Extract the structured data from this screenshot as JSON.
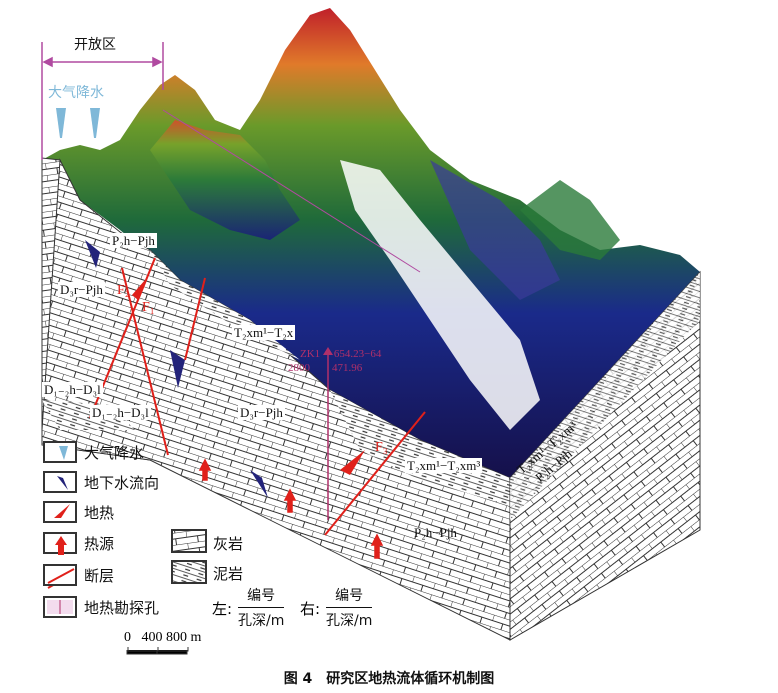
{
  "top": {
    "open_zone_label": "开放区",
    "precipitation_label": "大气降水"
  },
  "strata_labels": {
    "upper_left": "P₂h−Pjh",
    "left_mid": "D₃r−Pjh",
    "left_low_1": "D₁₋₂h−D₃l",
    "left_low_2": "D₁₋₂h−D₃l",
    "center_upper": "T₂xm¹−T₂x",
    "center_mid": "D₃r−Pjh",
    "front_right_upper": "T₂xm¹−T₂xm³",
    "front_right_lower": "P₂h−Pjh",
    "right_face_upper": "T₂xm¹−T₂xm³",
    "right_face_lower": "P₂h−Pjh"
  },
  "faults": [
    "F₁",
    "F₂",
    "F₃"
  ],
  "borehole": {
    "id": "ZK1",
    "left_depth": "2800",
    "right_number": "654.23−64",
    "right_depth": "471.96"
  },
  "legend": {
    "items": [
      {
        "label": "大气降水",
        "icon": "rain-drop-icon",
        "color": "#7fb8d8"
      },
      {
        "label": "地下水流向",
        "icon": "groundwater-arrow-icon",
        "color": "#23237a"
      },
      {
        "label": "地热",
        "icon": "geothermal-arrow-icon",
        "color": "#e0201a"
      },
      {
        "label": "热源",
        "icon": "heat-source-arrow-icon",
        "color": "#e0201a"
      },
      {
        "label": "断层",
        "icon": "fault-line-icon",
        "color": "#e0201a"
      },
      {
        "label": "地热勘探孔",
        "icon": "borehole-icon",
        "color": "#b0306a"
      }
    ],
    "lithology": [
      {
        "label": "灰岩",
        "icon": "limestone-pattern-icon"
      },
      {
        "label": "泥岩",
        "icon": "mudstone-pattern-icon"
      }
    ],
    "left_key": {
      "side": "左:",
      "numerator": "编号",
      "denominator": "孔深/m"
    },
    "right_key": {
      "side": "右:",
      "numerator": "编号",
      "denominator": "孔深/m"
    },
    "scale": {
      "ticks": [
        "0",
        "400",
        "800"
      ],
      "unit": "m"
    }
  },
  "caption": "图 4　研究区地热流体循环机制图"
}
